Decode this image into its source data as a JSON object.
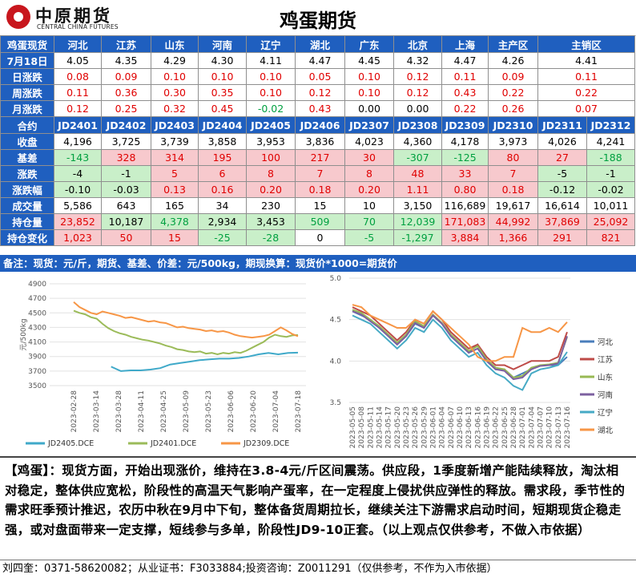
{
  "header": {
    "logo_cn": "中原期货",
    "logo_en": "CENTRAL CHINA FUTURES",
    "title": "鸡蛋期货"
  },
  "spot": {
    "label": "鸡蛋现货",
    "regions": [
      "河北",
      "江苏",
      "山东",
      "河南",
      "辽宁",
      "湖北",
      "广东",
      "北京",
      "上海",
      "主产区",
      "主销区"
    ],
    "rows": [
      {
        "label": "7月18日",
        "values": [
          "4.05",
          "4.35",
          "4.29",
          "4.30",
          "4.11",
          "4.47",
          "4.45",
          "4.32",
          "4.47",
          "4.26",
          "4.41"
        ],
        "colors": [
          "k",
          "k",
          "k",
          "k",
          "k",
          "k",
          "k",
          "k",
          "k",
          "k",
          "k"
        ]
      },
      {
        "label": "日涨跌",
        "values": [
          "0.08",
          "0.09",
          "0.10",
          "0.10",
          "0.10",
          "0.05",
          "0.10",
          "0.12",
          "0.11",
          "0.09",
          "0.11"
        ],
        "colors": [
          "r",
          "r",
          "r",
          "r",
          "r",
          "r",
          "r",
          "r",
          "r",
          "r",
          "r"
        ]
      },
      {
        "label": "周涨跌",
        "values": [
          "0.11",
          "0.36",
          "0.30",
          "0.35",
          "0.10",
          "0.12",
          "0.10",
          "0.12",
          "0.43",
          "0.22",
          "0.22"
        ],
        "colors": [
          "r",
          "r",
          "r",
          "r",
          "r",
          "r",
          "r",
          "r",
          "r",
          "r",
          "r"
        ]
      },
      {
        "label": "月涨跌",
        "values": [
          "0.12",
          "0.25",
          "0.32",
          "0.45",
          "-0.02",
          "0.43",
          "0.00",
          "0.00",
          "0.22",
          "0.26",
          "0.07"
        ],
        "colors": [
          "r",
          "r",
          "r",
          "r",
          "g",
          "r",
          "k",
          "k",
          "r",
          "r",
          "r"
        ]
      }
    ]
  },
  "futures": {
    "label": "合约",
    "contracts": [
      "JD2401",
      "JD2402",
      "JD2403",
      "JD2404",
      "JD2405",
      "JD2406",
      "JD2307",
      "JD2308",
      "JD2309",
      "JD2310",
      "JD2311",
      "JD2312"
    ],
    "rows": [
      {
        "label": "收盘",
        "values": [
          "4,196",
          "3,725",
          "3,739",
          "3,858",
          "3,953",
          "3,836",
          "4,023",
          "4,360",
          "4,178",
          "3,973",
          "4,026",
          "4,241"
        ],
        "colors": [
          "k",
          "k",
          "k",
          "k",
          "k",
          "k",
          "k",
          "k",
          "k",
          "k",
          "k",
          "k"
        ],
        "bgs": [
          "n",
          "n",
          "n",
          "n",
          "n",
          "n",
          "n",
          "n",
          "n",
          "n",
          "n",
          "n"
        ]
      },
      {
        "label": "基差",
        "values": [
          "-143",
          "328",
          "314",
          "195",
          "100",
          "217",
          "30",
          "-307",
          "-125",
          "80",
          "27",
          "-188"
        ],
        "colors": [
          "g",
          "r",
          "r",
          "r",
          "r",
          "r",
          "r",
          "g",
          "g",
          "r",
          "r",
          "g"
        ],
        "bgs": [
          "g",
          "r",
          "r",
          "r",
          "r",
          "r",
          "r",
          "g",
          "g",
          "r",
          "r",
          "g"
        ]
      },
      {
        "label": "涨跌",
        "values": [
          "-4",
          "-1",
          "5",
          "6",
          "8",
          "7",
          "8",
          "48",
          "33",
          "7",
          "-5",
          "-1"
        ],
        "colors": [
          "k",
          "k",
          "r",
          "r",
          "r",
          "r",
          "r",
          "r",
          "r",
          "r",
          "k",
          "k"
        ],
        "bgs": [
          "g",
          "g",
          "r",
          "r",
          "r",
          "r",
          "r",
          "r",
          "r",
          "r",
          "g",
          "g"
        ]
      },
      {
        "label": "涨跌幅",
        "values": [
          "-0.10",
          "-0.03",
          "0.13",
          "0.16",
          "0.20",
          "0.18",
          "0.20",
          "1.11",
          "0.80",
          "0.18",
          "-0.12",
          "-0.02"
        ],
        "colors": [
          "k",
          "k",
          "r",
          "r",
          "r",
          "r",
          "r",
          "r",
          "r",
          "r",
          "k",
          "k"
        ],
        "bgs": [
          "g",
          "g",
          "r",
          "r",
          "r",
          "r",
          "r",
          "r",
          "r",
          "r",
          "g",
          "g"
        ]
      },
      {
        "label": "成交量",
        "values": [
          "5,586",
          "643",
          "165",
          "34",
          "230",
          "15",
          "10",
          "3,150",
          "116,689",
          "19,617",
          "16,614",
          "10,011"
        ],
        "colors": [
          "k",
          "k",
          "k",
          "k",
          "k",
          "k",
          "k",
          "k",
          "k",
          "k",
          "k",
          "k"
        ],
        "bgs": [
          "n",
          "n",
          "n",
          "n",
          "n",
          "n",
          "n",
          "n",
          "n",
          "n",
          "n",
          "n"
        ]
      },
      {
        "label": "持仓量",
        "values": [
          "23,852",
          "10,187",
          "4,378",
          "2,934",
          "3,453",
          "509",
          "70",
          "12,039",
          "171,083",
          "44,992",
          "37,869",
          "25,092"
        ],
        "colors": [
          "r",
          "k",
          "g",
          "k",
          "k",
          "g",
          "g",
          "g",
          "r",
          "r",
          "r",
          "r"
        ],
        "bgs": [
          "r",
          "g",
          "g",
          "g",
          "g",
          "g",
          "g",
          "g",
          "r",
          "r",
          "r",
          "r"
        ]
      },
      {
        "label": "持仓变化",
        "values": [
          "1,023",
          "50",
          "15",
          "-25",
          "-28",
          "0",
          "-5",
          "-1,297",
          "3,884",
          "1,366",
          "291",
          "821"
        ],
        "colors": [
          "r",
          "r",
          "r",
          "g",
          "g",
          "k",
          "g",
          "g",
          "r",
          "r",
          "r",
          "r"
        ],
        "bgs": [
          "r",
          "r",
          "r",
          "g",
          "g",
          "n",
          "g",
          "g",
          "r",
          "r",
          "r",
          "r"
        ]
      }
    ]
  },
  "note": "备注：现货：元/斤，期货、基差、价差：元/500kg，期现换算：现货价*1000=期货价",
  "chart_data": [
    {
      "type": "line",
      "ylabel": "元/500kg",
      "ylim": [
        3500,
        4900
      ],
      "yticks": [
        "4900",
        "4700",
        "4500",
        "4300",
        "4100",
        "3900",
        "3700",
        "3500"
      ],
      "x_ticks": [
        "2023-02-28",
        "2023-03-14",
        "2023-03-28",
        "2023-04-11",
        "2023-04-25",
        "2023-05-09",
        "2023-05-23",
        "2023-06-06",
        "2023-06-20",
        "2023-07-04",
        "2023-07-18"
      ],
      "legend": "bottom",
      "series": [
        {
          "name": "JD2405.DCE",
          "color": "#3fa9c9",
          "x0": 6.5,
          "values": [
            3760,
            3700,
            3710,
            3710,
            3720,
            3740,
            3790,
            3810,
            3830,
            3850,
            3860,
            3870,
            3870,
            3880,
            3900,
            3930,
            3950,
            3930,
            3950,
            3953
          ]
        },
        {
          "name": "JD2401.DCE",
          "color": "#9bbb59",
          "x0": 0,
          "values": [
            4530,
            4500,
            4480,
            4440,
            4420,
            4350,
            4290,
            4250,
            4220,
            4200,
            4170,
            4150,
            4130,
            4120,
            4100,
            4080,
            4050,
            4030,
            4000,
            3990,
            3970,
            3960,
            3970,
            3940,
            3950,
            3930,
            3950,
            3940,
            3960,
            3950,
            3980,
            4020,
            4060,
            4100,
            4160,
            4200,
            4180,
            4170,
            4190,
            4196
          ]
        },
        {
          "name": "JD2309.DCE",
          "color": "#f79646",
          "x0": 0,
          "values": [
            4650,
            4580,
            4540,
            4500,
            4480,
            4520,
            4500,
            4480,
            4460,
            4430,
            4440,
            4420,
            4400,
            4380,
            4390,
            4370,
            4360,
            4330,
            4300,
            4310,
            4290,
            4280,
            4270,
            4250,
            4260,
            4240,
            4250,
            4230,
            4200,
            4180,
            4170,
            4160,
            4170,
            4180,
            4200,
            4250,
            4300,
            4260,
            4210,
            4178
          ]
        }
      ]
    },
    {
      "type": "line",
      "ylim": [
        3.5,
        5.0
      ],
      "yticks": [
        "5.0",
        "4.5",
        "4.0",
        "3.5"
      ],
      "x_ticks": [
        "2023-05-05",
        "2023-05-08",
        "2023-05-11",
        "2023-05-14",
        "2023-05-17",
        "2023-05-20",
        "2023-05-23",
        "2023-05-26",
        "2023-05-29",
        "2023-06-01",
        "2023-06-04",
        "2023-06-07",
        "2023-06-10",
        "2023-06-13",
        "2023-06-16",
        "2023-06-19",
        "2023-06-22",
        "2023-06-25",
        "2023-06-28",
        "2023-07-01",
        "2023-07-04",
        "2023-07-07",
        "2023-07-10",
        "2023-07-13",
        "2023-07-16"
      ],
      "legend": "right",
      "series": [
        {
          "name": "河北",
          "color": "#4a7ebb",
          "values": [
            4.6,
            4.55,
            4.5,
            4.4,
            4.3,
            4.2,
            4.3,
            4.45,
            4.4,
            4.55,
            4.45,
            4.3,
            4.2,
            4.1,
            4.2,
            4.0,
            3.9,
            3.9,
            3.8,
            3.85,
            3.9,
            3.95,
            3.95,
            3.95,
            4.05
          ]
        },
        {
          "name": "江苏",
          "color": "#be4b48",
          "values": [
            4.65,
            4.6,
            4.55,
            4.45,
            4.35,
            4.25,
            4.35,
            4.5,
            4.45,
            4.6,
            4.5,
            4.35,
            4.25,
            4.15,
            4.2,
            4.05,
            3.95,
            3.95,
            3.9,
            3.95,
            4.0,
            4.0,
            4.0,
            4.05,
            4.35
          ]
        },
        {
          "name": "山东",
          "color": "#98b954",
          "values": [
            4.62,
            4.58,
            4.5,
            4.42,
            4.32,
            4.22,
            4.32,
            4.48,
            4.42,
            4.56,
            4.46,
            4.32,
            4.22,
            4.12,
            4.18,
            4.02,
            3.92,
            3.9,
            3.8,
            3.82,
            3.92,
            3.95,
            3.96,
            3.98,
            4.29
          ]
        },
        {
          "name": "河南",
          "color": "#7d60a0",
          "values": [
            4.6,
            4.56,
            4.48,
            4.4,
            4.3,
            4.2,
            4.3,
            4.46,
            4.4,
            4.55,
            4.45,
            4.3,
            4.2,
            4.1,
            4.15,
            4.0,
            3.9,
            3.88,
            3.78,
            3.8,
            3.9,
            3.94,
            3.95,
            3.97,
            4.3
          ]
        },
        {
          "name": "辽宁",
          "color": "#46aac5",
          "values": [
            4.55,
            4.5,
            4.45,
            4.35,
            4.25,
            4.15,
            4.25,
            4.4,
            4.35,
            4.5,
            4.4,
            4.25,
            4.15,
            4.05,
            4.1,
            3.95,
            3.85,
            3.8,
            3.7,
            3.65,
            3.85,
            3.9,
            3.92,
            3.95,
            4.11
          ]
        },
        {
          "name": "湖北",
          "color": "#f79646",
          "values": [
            4.68,
            4.65,
            4.55,
            4.5,
            4.45,
            4.4,
            4.4,
            4.5,
            4.45,
            4.6,
            4.5,
            4.4,
            4.3,
            4.2,
            4.05,
            4.0,
            4.0,
            4.05,
            4.05,
            4.4,
            4.35,
            4.35,
            4.4,
            4.35,
            4.47
          ]
        }
      ]
    }
  ],
  "comment": "【鸡蛋】：现货方面，开始出现涨价，维持在3.8-4元/斤区间震荡。供应段，1季度新增产能陆续释放，淘汰相对稳定，整体供应宽松，阶段性的高温天气影响产蛋率，在一定程度上侵扰供应弹性的释放。需求段，季节性的需求旺季预计推迟，农历中秋在9月中下旬，整体备货周期拉长，继续关注下游需求启动时间，短期现货企稳走强，或对盘面带来一定支撑，短线参与多单，阶段性JD9-10正套。（以上观点仅供参考，不做入市依据）",
  "footer": "刘四奎：0371-58620082；从业证书：F3033884;投资咨询：Z0011291（仅供参考，不作为入市依据）"
}
